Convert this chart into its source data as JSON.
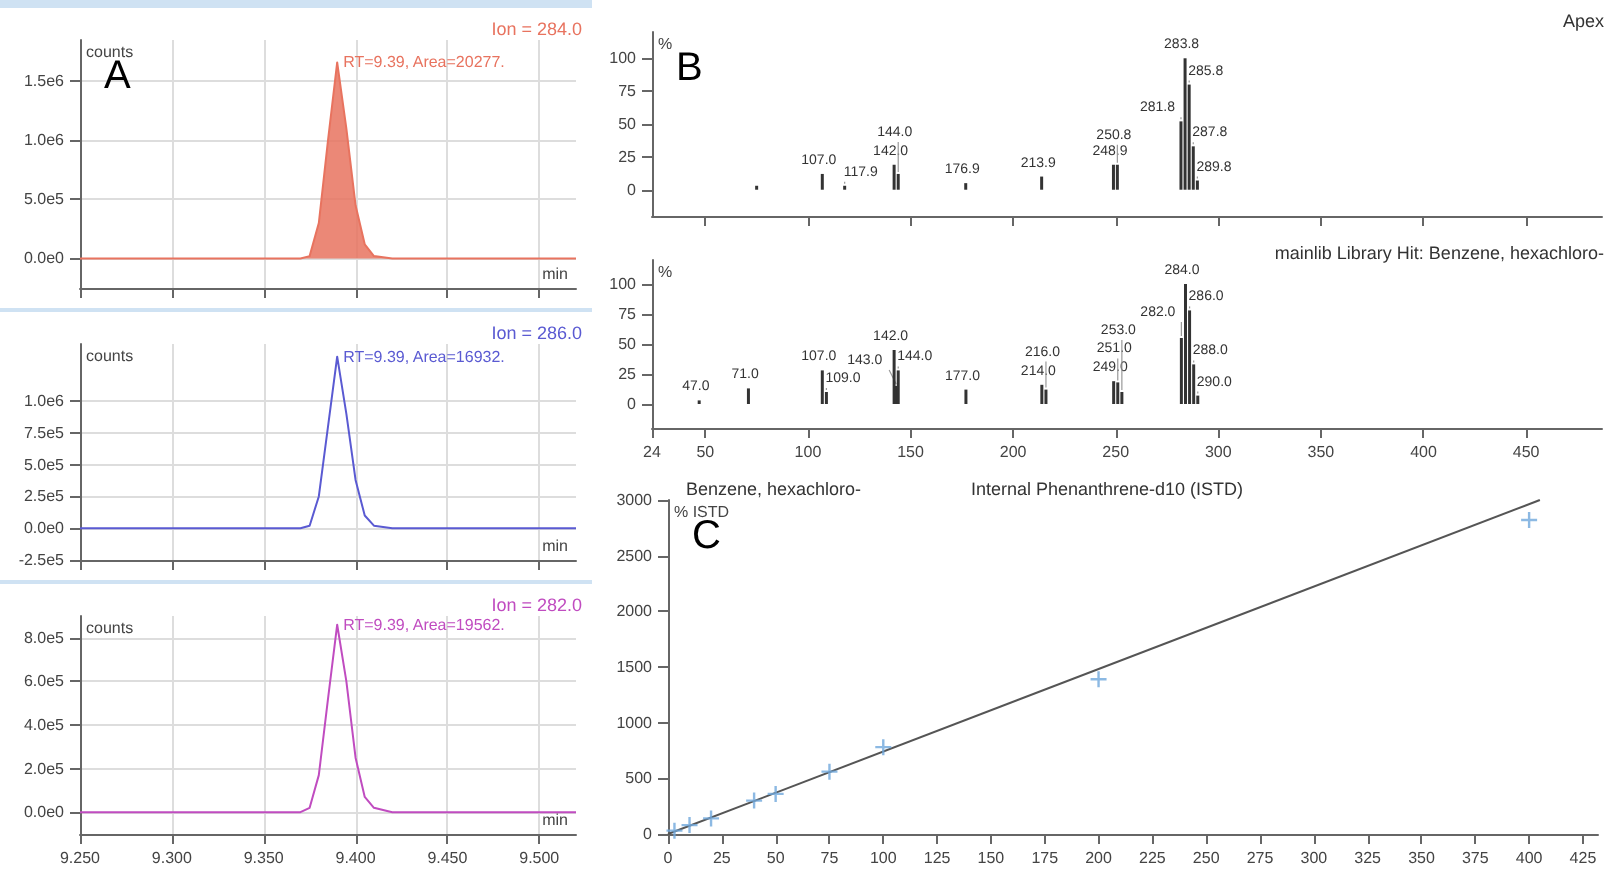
{
  "chart_data": [
    {
      "type": "area",
      "title": "Ion = 284.0",
      "ylabel": "counts",
      "xlabel": "min",
      "annotations": [
        "A",
        {
          "text": "RT=9.39, Area=20277.",
          "x": 9.39,
          "y": 1660000
        }
      ],
      "tick_labels": "y",
      "grid": true,
      "xlim": [
        9.25,
        9.52
      ],
      "xticks": [
        9.25,
        9.3,
        9.35,
        9.4,
        9.45,
        9.5
      ],
      "ylim": [
        -250000,
        1850000
      ],
      "yticks": [
        {
          "value": 0,
          "label": "0.0e0"
        },
        {
          "value": 500000,
          "label": "5.0e5"
        },
        {
          "value": 1000000,
          "label": "1.0e6"
        },
        {
          "value": 1500000,
          "label": "1.5e6"
        }
      ],
      "x": [
        9.25,
        9.3,
        9.35,
        9.37,
        9.375,
        9.38,
        9.385,
        9.39,
        9.395,
        9.4,
        9.405,
        9.41,
        9.42,
        9.45,
        9.5,
        9.52
      ],
      "series": [
        {
          "color": "#e8735f",
          "values": [
            0,
            0,
            0,
            0,
            20000,
            300000,
            1000000,
            1660000,
            1100000,
            450000,
            120000,
            20000,
            0,
            0,
            0,
            0
          ]
        }
      ]
    },
    {
      "type": "line",
      "title": "Ion = 286.0",
      "ylabel": "counts",
      "xlabel": "min",
      "annotations": [
        {
          "text": "RT=9.39, Area=16932.",
          "x": 9.39,
          "y": 1350000
        }
      ],
      "tick_labels": "y",
      "grid": true,
      "xlim": [
        9.25,
        9.52
      ],
      "xticks": [
        9.25,
        9.3,
        9.35,
        9.4,
        9.45,
        9.5
      ],
      "ylim": [
        -250000,
        1450000
      ],
      "yticks": [
        {
          "value": -250000,
          "label": "-2.5e5"
        },
        {
          "value": 0,
          "label": "0.0e0"
        },
        {
          "value": 250000,
          "label": "2.5e5"
        },
        {
          "value": 500000,
          "label": "5.0e5"
        },
        {
          "value": 750000,
          "label": "7.5e5"
        },
        {
          "value": 1000000,
          "label": "1.0e6"
        }
      ],
      "x": [
        9.25,
        9.3,
        9.35,
        9.37,
        9.375,
        9.38,
        9.385,
        9.39,
        9.395,
        9.4,
        9.405,
        9.41,
        9.42,
        9.45,
        9.5,
        9.52
      ],
      "series": [
        {
          "color": "#5a5ad2",
          "marker": "none",
          "values": [
            0,
            0,
            0,
            0,
            20000,
            250000,
            800000,
            1350000,
            900000,
            380000,
            100000,
            20000,
            0,
            0,
            0,
            0
          ]
        }
      ]
    },
    {
      "type": "line",
      "title": "Ion = 282.0",
      "ylabel": "counts",
      "xlabel": "min",
      "annotations": [
        {
          "text": "RT=9.39, Area=19562.",
          "x": 9.39,
          "y": 860000
        }
      ],
      "grid": true,
      "xlim": [
        9.25,
        9.52
      ],
      "xticks": [
        {
          "value": 9.25,
          "label": "9.250"
        },
        {
          "value": 9.3,
          "label": "9.300"
        },
        {
          "value": 9.35,
          "label": "9.350"
        },
        {
          "value": 9.4,
          "label": "9.400"
        },
        {
          "value": 9.45,
          "label": "9.450"
        },
        {
          "value": 9.5,
          "label": "9.500"
        }
      ],
      "ylim": [
        -100000,
        900000
      ],
      "yticks": [
        {
          "value": 0,
          "label": "0.0e0"
        },
        {
          "value": 200000,
          "label": "2.0e5"
        },
        {
          "value": 400000,
          "label": "4.0e5"
        },
        {
          "value": 600000,
          "label": "6.0e5"
        },
        {
          "value": 800000,
          "label": "8.0e5"
        }
      ],
      "x": [
        9.25,
        9.3,
        9.35,
        9.37,
        9.375,
        9.38,
        9.385,
        9.39,
        9.395,
        9.4,
        9.405,
        9.41,
        9.42,
        9.45,
        9.5,
        9.52
      ],
      "series": [
        {
          "color": "#c04cc0",
          "marker": "none",
          "values": [
            0,
            0,
            0,
            0,
            20000,
            170000,
            520000,
            860000,
            600000,
            250000,
            70000,
            20000,
            0,
            0,
            0,
            0
          ]
        }
      ]
    },
    {
      "type": "bar",
      "title": "Apex",
      "ylabel": "%",
      "tick_labels": "y",
      "xlim": [
        24,
        487
      ],
      "xticks": [
        50,
        100,
        150,
        200,
        250,
        300,
        350,
        400,
        450
      ],
      "ylim": [
        -20,
        120
      ],
      "yticks": [
        0,
        25,
        50,
        75,
        100
      ],
      "annotations": [
        "B",
        {
          "text": "107.0",
          "x": 107.0,
          "y": 12
        },
        {
          "text": "117.9",
          "x": 117.9,
          "y": 3
        },
        {
          "text": "142.0",
          "x": 142.0,
          "y": 19
        },
        {
          "text": "144.0",
          "x": 144.0,
          "y": 12
        },
        {
          "text": "176.9",
          "x": 176.9,
          "y": 5
        },
        {
          "text": "213.9",
          "x": 213.9,
          "y": 10
        },
        {
          "text": "248.9",
          "x": 248.9,
          "y": 19
        },
        {
          "text": "250.8",
          "x": 250.8,
          "y": 19
        },
        {
          "text": "283.8",
          "x": 283.8,
          "y": 100
        },
        {
          "text": "285.8",
          "x": 285.8,
          "y": 80
        },
        {
          "text": "281.8",
          "x": 281.8,
          "y": 52
        },
        {
          "text": "287.8",
          "x": 287.8,
          "y": 33
        },
        {
          "text": "289.8",
          "x": 289.8,
          "y": 7
        }
      ],
      "x": [
        75,
        107.0,
        117.9,
        142.0,
        144.0,
        176.9,
        213.9,
        248.9,
        250.8,
        281.8,
        283.8,
        285.8,
        287.8,
        289.8
      ],
      "series": [
        {
          "color": "#333333",
          "values": [
            3,
            12,
            3,
            19,
            12,
            5,
            10,
            19,
            19,
            52,
            100,
            80,
            33,
            7
          ]
        }
      ]
    },
    {
      "type": "bar",
      "title": "mainlib Library Hit: Benzene, hexachloro-",
      "ylabel": "%",
      "xlim": [
        24,
        487
      ],
      "xticks": [
        24,
        50,
        100,
        150,
        200,
        250,
        300,
        350,
        400,
        450
      ],
      "ylim": [
        -20,
        120
      ],
      "yticks": [
        0,
        25,
        50,
        75,
        100
      ],
      "annotations": [
        {
          "text": "47.0",
          "x": 47.0,
          "y": 3
        },
        {
          "text": "71.0",
          "x": 71.0,
          "y": 13
        },
        {
          "text": "107.0",
          "x": 107.0,
          "y": 28
        },
        {
          "text": "109.0",
          "x": 109.0,
          "y": 10
        },
        {
          "text": "142.0",
          "x": 142.0,
          "y": 45
        },
        {
          "text": "144.0",
          "x": 144.0,
          "y": 28
        },
        {
          "text": "143.0",
          "x": 143.0,
          "y": 15
        },
        {
          "text": "177.0",
          "x": 177.0,
          "y": 12
        },
        {
          "text": "214.0",
          "x": 214.0,
          "y": 16
        },
        {
          "text": "216.0",
          "x": 216.0,
          "y": 12
        },
        {
          "text": "249.0",
          "x": 249.0,
          "y": 19
        },
        {
          "text": "251.0",
          "x": 251.0,
          "y": 18
        },
        {
          "text": "253.0",
          "x": 253.0,
          "y": 10
        },
        {
          "text": "284.0",
          "x": 284.0,
          "y": 100
        },
        {
          "text": "286.0",
          "x": 286.0,
          "y": 78
        },
        {
          "text": "282.0",
          "x": 282.0,
          "y": 55
        },
        {
          "text": "288.0",
          "x": 288.0,
          "y": 33
        },
        {
          "text": "290.0",
          "x": 290.0,
          "y": 7
        }
      ],
      "x": [
        47.0,
        71.0,
        107.0,
        109.0,
        142.0,
        143.0,
        144.0,
        177.0,
        214.0,
        216.0,
        249.0,
        251.0,
        253.0,
        282.0,
        284.0,
        286.0,
        288.0,
        290.0
      ],
      "series": [
        {
          "color": "#333333",
          "values": [
            3,
            13,
            28,
            10,
            45,
            15,
            28,
            12,
            16,
            12,
            19,
            18,
            10,
            55,
            100,
            78,
            33,
            7
          ]
        }
      ]
    },
    {
      "type": "scatter",
      "title": "Benzene, hexachloro-",
      "subtitle": "Internal Phenanthrene-d10 (ISTD)",
      "ylabel": "% ISTD",
      "annotations": [
        "C"
      ],
      "xlim": [
        0,
        432
      ],
      "xticks": [
        0,
        25,
        50,
        75,
        100,
        125,
        150,
        175,
        200,
        225,
        250,
        275,
        300,
        325,
        350,
        375,
        400,
        425
      ],
      "ylim": [
        0,
        3000
      ],
      "yticks": [
        0,
        500,
        1000,
        1500,
        2000,
        2500,
        3000
      ],
      "series": [
        {
          "color": "#6fa8dc",
          "marker": "cross",
          "x": [
            3,
            10,
            20,
            40,
            50,
            75,
            100,
            200,
            400
          ],
          "values": [
            30,
            80,
            140,
            300,
            360,
            560,
            780,
            1390,
            2820
          ]
        },
        {
          "type": "line",
          "color": "#555555",
          "x": [
            0,
            405
          ],
          "values": [
            0,
            3000
          ]
        }
      ]
    }
  ]
}
